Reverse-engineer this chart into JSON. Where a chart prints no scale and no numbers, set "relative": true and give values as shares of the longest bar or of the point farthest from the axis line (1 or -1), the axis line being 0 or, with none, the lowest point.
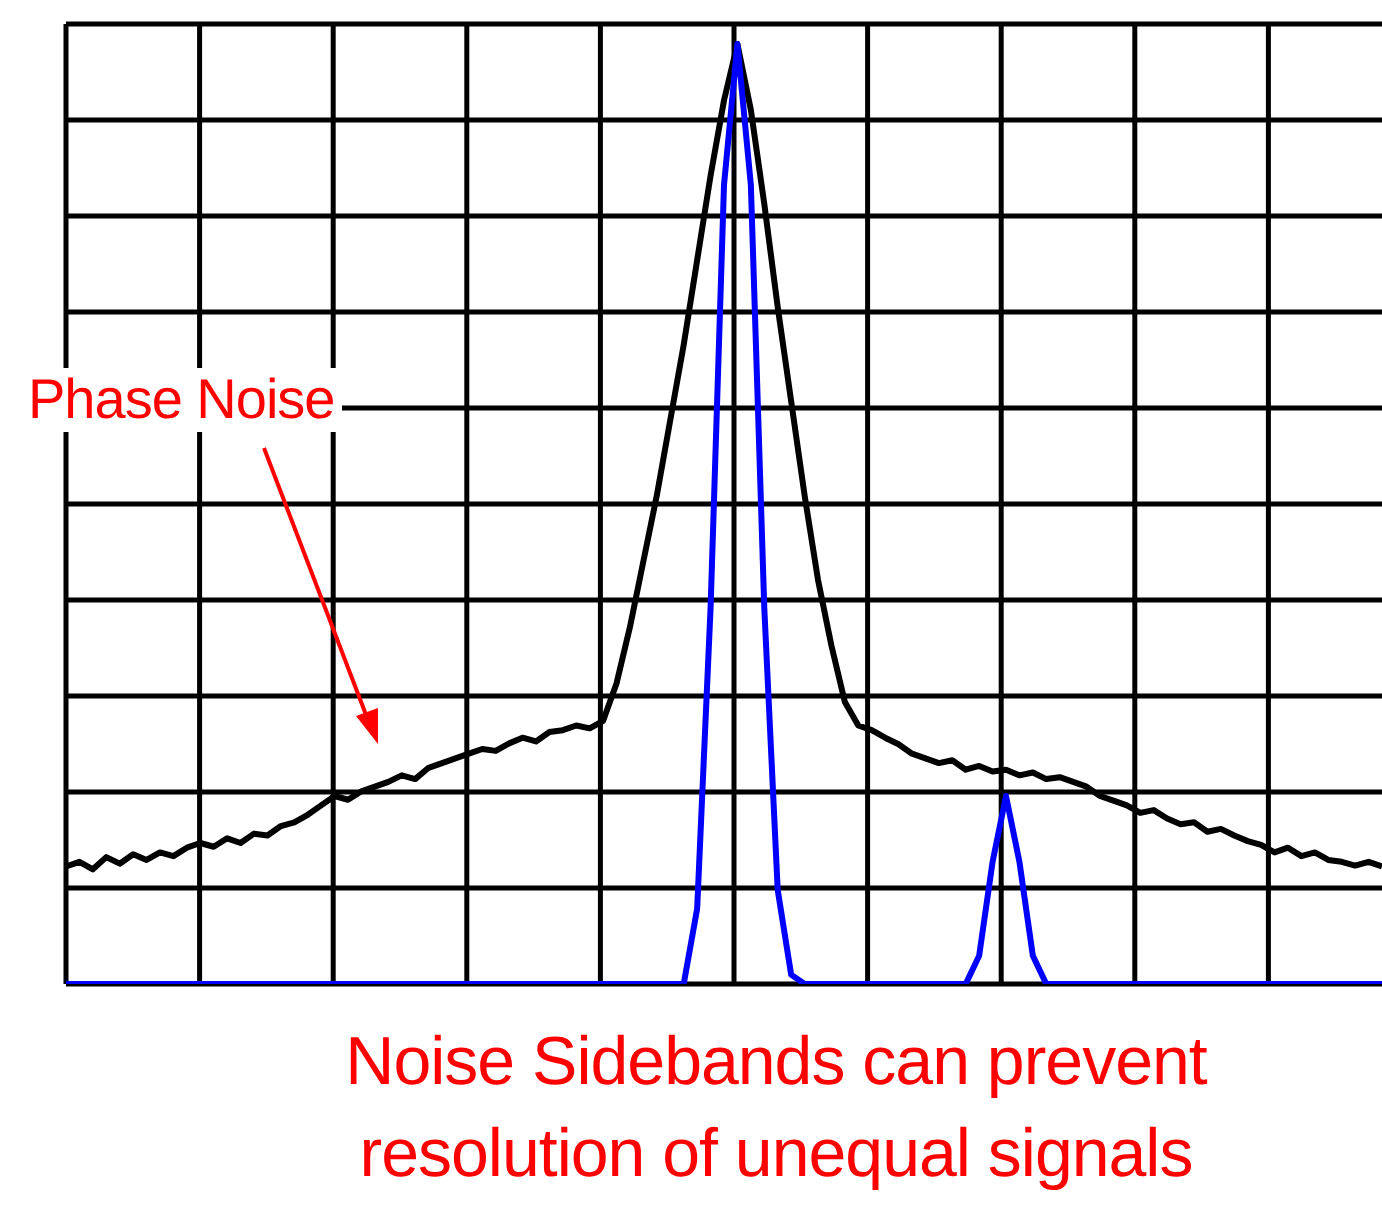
{
  "chart_data": {
    "type": "line",
    "relative": true,
    "grid": true,
    "marker": "none",
    "line_style": "solid",
    "categories": [
      null,
      null,
      null,
      null,
      null,
      null,
      null,
      null,
      null,
      null,
      null,
      null,
      null,
      null,
      null,
      null,
      null,
      null,
      null,
      null,
      null,
      null,
      null,
      null,
      null,
      null,
      null,
      null,
      null,
      null,
      null,
      null,
      null,
      null,
      null,
      null,
      null,
      null,
      null,
      null,
      null,
      null,
      null,
      null,
      null,
      null,
      null,
      null,
      null,
      null,
      null,
      null,
      null,
      null,
      null,
      null,
      null,
      null,
      null,
      null,
      null,
      null,
      null,
      null,
      null,
      null,
      null,
      null,
      null,
      null,
      null,
      null,
      null,
      null,
      null,
      null,
      null,
      null,
      null,
      null,
      null,
      null,
      null,
      null,
      null,
      null,
      null,
      null,
      null,
      null,
      null,
      null,
      null,
      null,
      null,
      null,
      null,
      null,
      null
    ],
    "series": [
      {
        "color": "#000000",
        "values": [
          0.125,
          0.13,
          0.122,
          0.135,
          0.128,
          0.138,
          0.132,
          0.14,
          0.136,
          0.145,
          0.15,
          0.146,
          0.155,
          0.15,
          0.16,
          0.158,
          0.168,
          0.172,
          0.18,
          0.19,
          0.2,
          0.196,
          0.205,
          0.21,
          0.215,
          0.222,
          0.218,
          0.23,
          0.235,
          0.24,
          0.245,
          0.25,
          0.248,
          0.256,
          0.262,
          0.258,
          0.268,
          0.27,
          0.275,
          0.272,
          0.28,
          0.32,
          0.38,
          0.45,
          0.52,
          0.6,
          0.68,
          0.77,
          0.86,
          0.94,
          1.0,
          0.93,
          0.83,
          0.72,
          0.62,
          0.52,
          0.43,
          0.36,
          0.3,
          0.275,
          0.27,
          0.262,
          0.255,
          0.245,
          0.24,
          0.235,
          0.238,
          0.228,
          0.232,
          0.226,
          0.228,
          0.222,
          0.225,
          0.218,
          0.22,
          0.215,
          0.21,
          0.2,
          0.195,
          0.19,
          0.182,
          0.185,
          0.176,
          0.17,
          0.172,
          0.162,
          0.165,
          0.158,
          0.152,
          0.148,
          0.14,
          0.145,
          0.136,
          0.14,
          0.132,
          0.13,
          0.126,
          0.13,
          0.125
        ]
      },
      {
        "color": "#0000ff",
        "values": [
          0,
          0,
          0,
          0,
          0,
          0,
          0,
          0,
          0,
          0,
          0,
          0,
          0,
          0,
          0,
          0,
          0,
          0,
          0,
          0,
          0,
          0,
          0,
          0,
          0,
          0,
          0,
          0,
          0,
          0,
          0,
          0,
          0,
          0,
          0,
          0,
          0,
          0,
          0,
          0,
          0,
          0,
          0,
          0,
          0,
          0,
          0,
          0.08,
          0.4,
          0.85,
          1.0,
          0.85,
          0.4,
          0.1,
          0.01,
          0,
          0,
          0,
          0,
          0,
          0,
          0,
          0,
          0,
          0,
          0,
          0,
          0,
          0.03,
          0.13,
          0.2,
          0.13,
          0.03,
          0,
          0,
          0,
          0,
          0,
          0,
          0,
          0,
          0,
          0,
          0,
          0,
          0,
          0,
          0,
          0,
          0,
          0,
          0,
          0,
          0,
          0,
          0,
          0,
          0,
          0
        ]
      }
    ],
    "annotations": [
      "Phase Noise",
      "Noise Sidebands can prevent resolution of unequal signals"
    ]
  }
}
